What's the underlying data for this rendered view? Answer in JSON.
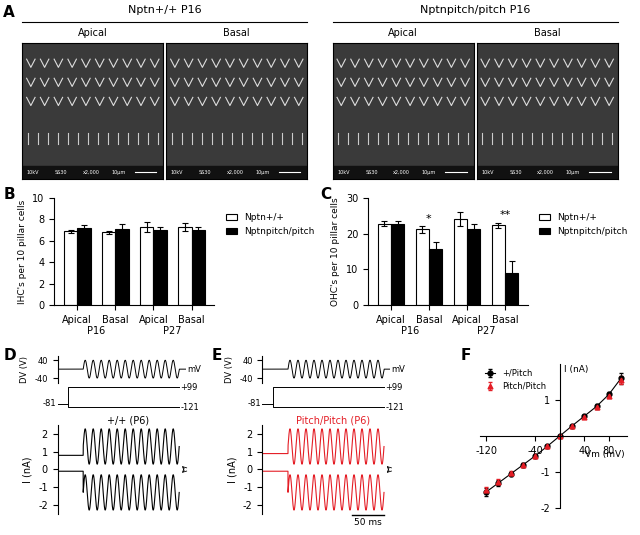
{
  "panel_a": {
    "letter": "A",
    "groups": [
      {
        "title": "Nptn+/+ P16",
        "images": [
          "Apical",
          "Basal"
        ]
      },
      {
        "title": "Nptnpitch/pitch P16",
        "images": [
          "Apical",
          "Basal"
        ]
      }
    ],
    "sem_info": [
      "10kV",
      "SS30",
      "x2,000",
      "10μm"
    ]
  },
  "chart_data": [
    {
      "letter": "B",
      "type": "bar",
      "ylabel": "IHC's per 10 pillar cells",
      "categories": [
        "Apical",
        "Basal",
        "Apical",
        "Basal"
      ],
      "groups": [
        "P16",
        "P27"
      ],
      "series": [
        {
          "name": "Nptn+/+",
          "color": "#ffffff",
          "values": [
            6.9,
            6.8,
            7.3,
            7.3
          ],
          "errors": [
            0.15,
            0.15,
            0.45,
            0.4
          ]
        },
        {
          "name": "Nptnpitch/pitch",
          "color": "#000000",
          "values": [
            7.2,
            7.1,
            7.0,
            7.0
          ],
          "errors": [
            0.3,
            0.45,
            0.25,
            0.25
          ]
        }
      ],
      "ylim": [
        0,
        10
      ],
      "yticks": [
        0,
        2,
        4,
        6,
        8,
        10
      ],
      "legend": "right"
    },
    {
      "letter": "C",
      "type": "bar",
      "ylabel": "OHC's per 10 pillar cells",
      "categories": [
        "Apical",
        "Basal",
        "Apical",
        "Basal"
      ],
      "groups": [
        "P16",
        "P27"
      ],
      "series": [
        {
          "name": "Nptn+/+",
          "color": "#ffffff",
          "values": [
            22.8,
            21.2,
            24.2,
            22.3
          ],
          "errors": [
            0.6,
            0.9,
            2.0,
            0.8
          ]
        },
        {
          "name": "Nptnpitch/pitch",
          "color": "#000000",
          "values": [
            22.8,
            15.8,
            21.2,
            9.0
          ],
          "errors": [
            0.8,
            1.8,
            1.5,
            3.3
          ],
          "significance": [
            null,
            "*",
            null,
            "**"
          ]
        }
      ],
      "ylim": [
        0,
        30
      ],
      "yticks": [
        0,
        10,
        20,
        30
      ],
      "legend": "right"
    },
    {
      "letter": "D",
      "type": "line",
      "title": "+/+ (P6)",
      "color": "#000000",
      "stimulus": {
        "ylabel": "DV (V)",
        "unit": "mV",
        "ylim": [
          -60,
          60
        ],
        "yticks": [
          -40,
          40
        ],
        "amplitude": 40,
        "cycles": 12,
        "start": 40,
        "end": 190
      },
      "protocol": {
        "holding": -81,
        "steps": [
          {
            "value": 99,
            "label": "+99"
          },
          {
            "value": -121,
            "label": "-121"
          }
        ]
      },
      "traces": [
        {
          "pre": 0.8,
          "min": 0.3,
          "max": 2.3
        },
        {
          "pre": -0.1,
          "min": -2.3,
          "max": -0.3
        }
      ],
      "ylabel": "I (nA)",
      "xlim": [
        0,
        200
      ],
      "ylim": [
        -2.5,
        2.5
      ],
      "yticks": [
        -2,
        -1,
        0,
        1,
        2
      ]
    },
    {
      "letter": "E",
      "type": "line",
      "title": "Pitch/Pitch (P6)",
      "color": "#e41e26",
      "stimulus": {
        "ylabel": "DV (V)",
        "unit": "mV",
        "ylim": [
          -60,
          60
        ],
        "yticks": [
          -40,
          40
        ],
        "amplitude": 40,
        "cycles": 12,
        "start": 40,
        "end": 190
      },
      "protocol": {
        "holding": -81,
        "steps": [
          {
            "value": 99,
            "label": "+99"
          },
          {
            "value": -121,
            "label": "-121"
          }
        ]
      },
      "traces": [
        {
          "pre": 0.9,
          "min": 0.3,
          "max": 2.3
        },
        {
          "pre": -0.1,
          "min": -2.3,
          "max": -0.3
        }
      ],
      "scale_bar": {
        "value": 50,
        "label": "50 ms"
      },
      "ylabel": "I (nA)",
      "xlim": [
        0,
        200
      ],
      "ylim": [
        -2.5,
        2.5
      ],
      "yticks": [
        -2,
        -1,
        0,
        1,
        2
      ]
    },
    {
      "letter": "F",
      "type": "scatter",
      "xlabel": "Vm (mV)",
      "ylabel": "I (nA)",
      "x": [
        -120,
        -100,
        -80,
        -60,
        -40,
        -20,
        0,
        20,
        40,
        60,
        80,
        100
      ],
      "series": [
        {
          "name": "+/Pitch",
          "color": "#000000",
          "marker": "circle",
          "line_style": "solid",
          "values": [
            -1.55,
            -1.3,
            -1.05,
            -0.8,
            -0.55,
            -0.28,
            0.0,
            0.28,
            0.55,
            0.82,
            1.15,
            1.6
          ],
          "errors": [
            0.1,
            0.08,
            0.06,
            0.05,
            0.04,
            0.03,
            0.0,
            0.03,
            0.04,
            0.06,
            0.08,
            0.15
          ]
        },
        {
          "name": "Pitch/Pitch",
          "color": "#e41e26",
          "marker": "triangle",
          "line_style": "none",
          "values": [
            -1.5,
            -1.27,
            -1.03,
            -0.79,
            -0.54,
            -0.27,
            0.0,
            0.27,
            0.54,
            0.8,
            1.12,
            1.55
          ],
          "errors": [
            0.08,
            0.07,
            0.05,
            0.04,
            0.03,
            0.03,
            0.0,
            0.03,
            0.03,
            0.05,
            0.07,
            0.12
          ]
        }
      ],
      "xlim": [
        -130,
        110
      ],
      "ylim": [
        -2,
        2
      ],
      "xticks": [
        -120,
        -40,
        40,
        80
      ],
      "yticks": [
        -2,
        -1,
        1
      ],
      "legend": "upper left"
    }
  ]
}
